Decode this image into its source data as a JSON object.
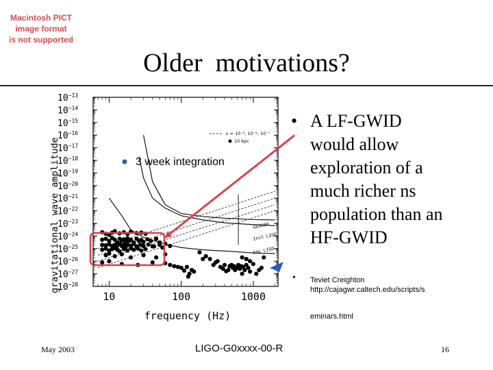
{
  "pict_error": [
    "Macintosh PICT",
    "image format",
    "is not supported"
  ],
  "slide": {
    "title": "Older  motivations?",
    "bullet_symbol": "•",
    "bullet_text": "A LF-GWID would allow exploration of a much richer ns population than an HF-GWID",
    "citation": {
      "line1": "Teviet Creighton",
      "line2": "http://cajagwr.caltech.edu/scripts/s",
      "line3": "eminars.html"
    },
    "footer": {
      "date": "May 2003",
      "doc_id": "LIGO-G0xxxx-00-R",
      "page": "16"
    }
  },
  "colors": {
    "highlight": "#d9414a",
    "arrow_red": "#d9414a",
    "arrow_blue": "#1f5fbf",
    "legend_dot": "#2a5db0",
    "pict_text": "#e0474c"
  },
  "chart_data": {
    "type": "scatter",
    "xlabel": "frequency (Hz)",
    "ylabel": "gravitational wave amplitude",
    "xscale": "log",
    "yscale": "log",
    "xlim": [
      6,
      2200
    ],
    "ylim": [
      1e-28,
      1e-13
    ],
    "x_ticks": [
      {
        "value": 10,
        "label": "10"
      },
      {
        "value": 100,
        "label": "100"
      },
      {
        "value": 1000,
        "label": "1000"
      }
    ],
    "y_ticks": [
      {
        "exp": -13,
        "label": "10",
        "sup": "−13"
      },
      {
        "exp": -14,
        "label": "10",
        "sup": "−14"
      },
      {
        "exp": -15,
        "label": "10",
        "sup": "−15"
      },
      {
        "exp": -16,
        "label": "10",
        "sup": "−16"
      },
      {
        "exp": -17,
        "label": "10",
        "sup": "−17"
      },
      {
        "exp": -18,
        "label": "10",
        "sup": "−18"
      },
      {
        "exp": -19,
        "label": "10",
        "sup": "−19"
      },
      {
        "exp": -20,
        "label": "10",
        "sup": "−20"
      },
      {
        "exp": -21,
        "label": "10",
        "sup": "−21"
      },
      {
        "exp": -22,
        "label": "10",
        "sup": "−22"
      },
      {
        "exp": -23,
        "label": "10",
        "sup": "−23"
      },
      {
        "exp": -24,
        "label": "10",
        "sup": "−24"
      },
      {
        "exp": -25,
        "label": "10",
        "sup": "−25"
      },
      {
        "exp": -26,
        "label": "10",
        "sup": "−26"
      },
      {
        "exp": -27,
        "label": "10",
        "sup": "−27"
      },
      {
        "exp": -28,
        "label": "10",
        "sup": "−28"
      }
    ],
    "legend": {
      "dash_label": "ε = 10⁻⁵, 10⁻⁶, 10⁻⁷",
      "dot_label": "10 kpc",
      "overlay_label": "3 week integration"
    },
    "curve_labels": [
      "GEO600",
      "Init LIGO",
      "Adv LIGO"
    ],
    "sensitivity_curves": [
      {
        "name": "GEO600",
        "points": [
          [
            30,
            1e-16
          ],
          [
            40,
            2e-20
          ],
          [
            60,
            3e-22
          ],
          [
            100,
            6e-23
          ],
          [
            200,
            3.5e-23
          ],
          [
            400,
            2.6e-23
          ],
          [
            1000,
            2e-23
          ],
          [
            2000,
            1.9e-23
          ]
        ]
      },
      {
        "name": "Init LIGO",
        "points": [
          [
            26,
            2e-18
          ],
          [
            30,
            4e-20
          ],
          [
            40,
            1e-21
          ],
          [
            60,
            1.6e-22
          ],
          [
            100,
            4e-23
          ],
          [
            200,
            1.9e-23
          ],
          [
            400,
            1.1e-23
          ],
          [
            1000,
            8e-24
          ],
          [
            2000,
            6.5e-24
          ]
        ]
      },
      {
        "name": "Adv LIGO",
        "points": [
          [
            10,
            1e-21
          ],
          [
            15,
            4e-23
          ],
          [
            20,
            3e-24
          ],
          [
            30,
            8e-25
          ],
          [
            60,
            2.2e-25
          ],
          [
            100,
            1.2e-25
          ],
          [
            200,
            8e-26
          ],
          [
            500,
            6e-26
          ],
          [
            1000,
            4.5e-26
          ],
          [
            2000,
            4e-26
          ]
        ]
      }
    ],
    "spindown_lines": [
      {
        "points": [
          [
            7,
            1e-25
          ],
          [
            2000,
            3.5e-21
          ]
        ]
      },
      {
        "points": [
          [
            7,
            3e-26
          ],
          [
            2000,
            1e-21
          ]
        ]
      },
      {
        "points": [
          [
            7,
            1e-26
          ],
          [
            2000,
            3e-22
          ]
        ]
      },
      {
        "points": [
          [
            7,
            3e-27
          ],
          [
            2000,
            1e-22
          ]
        ]
      }
    ],
    "vertical_line": {
      "x": 620,
      "ymin": 2e-25,
      "ymax": 2e-21
    },
    "points": [
      [
        8,
        2e-24
      ],
      [
        9,
        1.5e-24
      ],
      [
        10,
        1.2e-24
      ],
      [
        11,
        1.8e-24
      ],
      [
        12,
        2.4e-24
      ],
      [
        14,
        1.6e-24
      ],
      [
        16,
        2e-24
      ],
      [
        18,
        1.4e-24
      ],
      [
        20,
        2.2e-24
      ],
      [
        24,
        1.7e-24
      ],
      [
        28,
        1.9e-24
      ],
      [
        32,
        1.5e-24
      ],
      [
        8,
        5e-25
      ],
      [
        9,
        6e-25
      ],
      [
        10,
        4e-25
      ],
      [
        11,
        7e-25
      ],
      [
        12,
        5e-25
      ],
      [
        13,
        3e-25
      ],
      [
        14,
        6e-25
      ],
      [
        15,
        4.5e-25
      ],
      [
        16,
        5.5e-25
      ],
      [
        17,
        3.5e-25
      ],
      [
        18,
        6.5e-25
      ],
      [
        19,
        4e-25
      ],
      [
        20,
        5e-25
      ],
      [
        22,
        3e-25
      ],
      [
        24,
        6e-25
      ],
      [
        26,
        4e-25
      ],
      [
        28,
        5e-25
      ],
      [
        30,
        3.3e-25
      ],
      [
        34,
        5.5e-25
      ],
      [
        38,
        4e-25
      ],
      [
        45,
        6e-25
      ],
      [
        50,
        3e-25
      ],
      [
        8,
        2e-25
      ],
      [
        9,
        1.8e-25
      ],
      [
        10,
        2.2e-25
      ],
      [
        11,
        1.5e-25
      ],
      [
        12,
        2e-25
      ],
      [
        13,
        1.7e-25
      ],
      [
        14,
        2.5e-25
      ],
      [
        15,
        1.6e-25
      ],
      [
        16,
        2.2e-25
      ],
      [
        17,
        1.4e-25
      ],
      [
        18,
        2e-25
      ],
      [
        20,
        1.7e-25
      ],
      [
        22,
        2.3e-25
      ],
      [
        24,
        1.5e-25
      ],
      [
        27,
        2e-25
      ],
      [
        30,
        1.6e-25
      ],
      [
        35,
        2.1e-25
      ],
      [
        40,
        1.5e-25
      ],
      [
        8,
        8e-26
      ],
      [
        9,
        1e-25
      ],
      [
        10,
        7e-26
      ],
      [
        11,
        9e-26
      ],
      [
        12,
        1.1e-25
      ],
      [
        13,
        8e-26
      ],
      [
        14,
        6e-26
      ],
      [
        16,
        9e-26
      ],
      [
        18,
        7e-26
      ],
      [
        20,
        1.1e-25
      ],
      [
        22,
        8e-26
      ],
      [
        25,
        1e-25
      ],
      [
        28,
        7e-26
      ],
      [
        32,
        9e-26
      ],
      [
        42,
        1.5e-25
      ],
      [
        50,
        2e-25
      ],
      [
        55,
        1.2e-25
      ],
      [
        60,
        2.5e-25
      ],
      [
        70,
        1.6e-25
      ],
      [
        9,
        3e-26
      ],
      [
        10,
        4e-26
      ],
      [
        12,
        2.5e-26
      ],
      [
        15,
        3.5e-26
      ],
      [
        20,
        2e-26
      ],
      [
        30,
        3e-26
      ],
      [
        45,
        2e-26
      ],
      [
        60,
        3.5e-26
      ],
      [
        8,
        8e-27
      ],
      [
        10,
        1e-26
      ],
      [
        15,
        6e-27
      ],
      [
        25,
        5e-27
      ],
      [
        40,
        8e-27
      ],
      [
        60,
        7e-27
      ],
      [
        70,
        5e-27
      ],
      [
        80,
        4e-27
      ],
      [
        90,
        3.5e-27
      ],
      [
        100,
        3e-27
      ],
      [
        110,
        1.8e-27
      ],
      [
        120,
        3.5e-27
      ],
      [
        125,
        6e-28
      ],
      [
        130,
        1e-27
      ],
      [
        140,
        2e-27
      ],
      [
        150,
        1.5e-27
      ],
      [
        180,
        5e-26
      ],
      [
        200,
        1.5e-26
      ],
      [
        220,
        2.5e-26
      ],
      [
        250,
        1.5e-26
      ],
      [
        280,
        5e-27
      ],
      [
        300,
        8e-27
      ],
      [
        320,
        1e-26
      ],
      [
        350,
        3.5e-27
      ],
      [
        380,
        2.5e-27
      ],
      [
        400,
        5e-27
      ],
      [
        420,
        1.6e-27
      ],
      [
        450,
        2e-27
      ],
      [
        470,
        4e-27
      ],
      [
        500,
        5e-27
      ],
      [
        520,
        3e-27
      ],
      [
        540,
        4e-27
      ],
      [
        560,
        2e-27
      ],
      [
        600,
        3e-27
      ],
      [
        620,
        5e-27
      ],
      [
        650,
        2.5e-27
      ],
      [
        680,
        4e-27
      ],
      [
        700,
        1e-27
      ],
      [
        720,
        3.5e-27
      ],
      [
        760,
        2e-27
      ],
      [
        800,
        5e-27
      ],
      [
        850,
        3e-27
      ],
      [
        900,
        1.5e-27
      ],
      [
        700,
        2e-26
      ],
      [
        800,
        1.5e-26
      ],
      [
        900,
        1e-26
      ],
      [
        1000,
        6e-27
      ],
      [
        1100,
        1e-27
      ],
      [
        1200,
        2e-27
      ],
      [
        1300,
        3e-27
      ],
      [
        1400,
        2e-26
      ]
    ]
  }
}
